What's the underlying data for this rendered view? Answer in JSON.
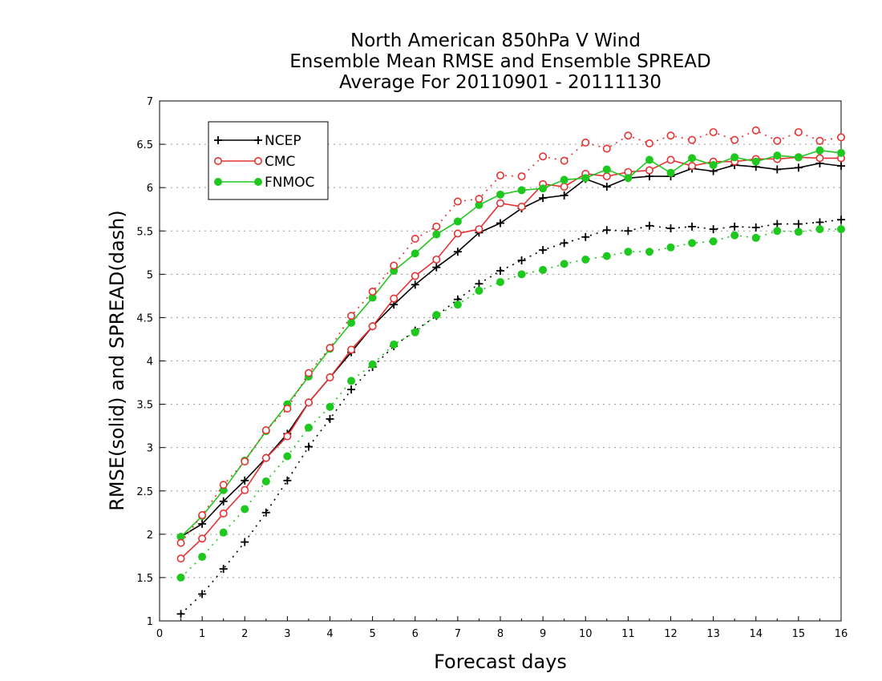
{
  "chart_data": {
    "type": "line",
    "title": [
      "North American 850hPa V Wind",
      "Ensemble Mean RMSE and Ensemble SPREAD",
      "Average For 20110901 - 20111130"
    ],
    "xlabel": "Forecast days",
    "ylabel": "RMSE(solid) and SPREAD(dash)",
    "xlim": [
      0,
      16
    ],
    "ylim": [
      1,
      7
    ],
    "xticks": [
      0,
      1,
      2,
      3,
      4,
      5,
      6,
      7,
      8,
      9,
      10,
      11,
      12,
      13,
      14,
      15,
      16
    ],
    "yticks": [
      1,
      1.5,
      2,
      2.5,
      3,
      3.5,
      4,
      4.5,
      5,
      5.5,
      6,
      6.5,
      7
    ],
    "grid": true,
    "legend_position": "top-left",
    "x": [
      0.5,
      1,
      1.5,
      2,
      2.5,
      3,
      3.5,
      4,
      4.5,
      5,
      5.5,
      6,
      6.5,
      7,
      7.5,
      8,
      8.5,
      9,
      9.5,
      10,
      10.5,
      11,
      11.5,
      12,
      12.5,
      13,
      13.5,
      14,
      14.5,
      15,
      15.5,
      16
    ],
    "series": [
      {
        "name": "NCEP",
        "metric": "RMSE",
        "line": "solid",
        "marker": "plus",
        "color": "#000000",
        "values": [
          1.97,
          2.12,
          2.38,
          2.62,
          2.88,
          3.16,
          3.52,
          3.81,
          4.1,
          4.4,
          4.65,
          4.88,
          5.08,
          5.26,
          5.48,
          5.59,
          5.76,
          5.88,
          5.91,
          6.1,
          6.01,
          6.11,
          6.13,
          6.13,
          6.22,
          6.19,
          6.26,
          6.24,
          6.21,
          6.23,
          6.28,
          6.25
        ]
      },
      {
        "name": "CMC",
        "metric": "RMSE",
        "line": "solid",
        "marker": "open-circle",
        "color": "#e63232",
        "values": [
          1.72,
          1.95,
          2.24,
          2.51,
          2.88,
          3.13,
          3.52,
          3.81,
          4.13,
          4.4,
          4.72,
          4.98,
          5.17,
          5.47,
          5.52,
          5.82,
          5.78,
          6.04,
          6.01,
          6.16,
          6.13,
          6.18,
          6.2,
          6.32,
          6.25,
          6.3,
          6.3,
          6.33,
          6.33,
          6.35,
          6.34,
          6.34
        ]
      },
      {
        "name": "FNMOC",
        "metric": "RMSE",
        "line": "solid",
        "marker": "filled-circle",
        "color": "#1ec81e",
        "values": [
          1.97,
          2.21,
          2.51,
          2.85,
          3.19,
          3.5,
          3.82,
          4.14,
          4.44,
          4.73,
          5.04,
          5.24,
          5.46,
          5.61,
          5.8,
          5.92,
          5.97,
          5.99,
          6.09,
          6.11,
          6.21,
          6.11,
          6.32,
          6.17,
          6.34,
          6.26,
          6.35,
          6.3,
          6.37,
          6.35,
          6.43,
          6.4
        ]
      },
      {
        "name": "NCEP",
        "metric": "SPREAD",
        "line": "dotted",
        "marker": "plus",
        "color": "#000000",
        "values": [
          1.08,
          1.31,
          1.6,
          1.91,
          2.25,
          2.62,
          3.01,
          3.33,
          3.67,
          3.93,
          4.17,
          4.35,
          4.52,
          4.71,
          4.89,
          5.04,
          5.16,
          5.28,
          5.36,
          5.43,
          5.51,
          5.5,
          5.56,
          5.53,
          5.55,
          5.52,
          5.55,
          5.54,
          5.58,
          5.58,
          5.6,
          5.63
        ]
      },
      {
        "name": "CMC",
        "metric": "SPREAD",
        "line": "dotted",
        "marker": "open-circle",
        "color": "#e63232",
        "values": [
          1.9,
          2.22,
          2.57,
          2.84,
          3.2,
          3.45,
          3.86,
          4.15,
          4.52,
          4.8,
          5.1,
          5.41,
          5.55,
          5.84,
          5.87,
          6.14,
          6.13,
          6.36,
          6.31,
          6.52,
          6.45,
          6.6,
          6.51,
          6.6,
          6.55,
          6.64,
          6.55,
          6.66,
          6.54,
          6.64,
          6.54,
          6.58
        ]
      },
      {
        "name": "FNMOC",
        "metric": "SPREAD",
        "line": "dotted",
        "marker": "filled-circle",
        "color": "#1ec81e",
        "values": [
          1.5,
          1.74,
          2.02,
          2.29,
          2.61,
          2.9,
          3.23,
          3.47,
          3.77,
          3.96,
          4.19,
          4.33,
          4.53,
          4.65,
          4.81,
          4.91,
          5.0,
          5.05,
          5.12,
          5.17,
          5.21,
          5.26,
          5.26,
          5.31,
          5.36,
          5.38,
          5.45,
          5.42,
          5.5,
          5.49,
          5.52,
          5.52
        ]
      }
    ],
    "legend": [
      "NCEP",
      "CMC",
      "FNMOC"
    ]
  }
}
